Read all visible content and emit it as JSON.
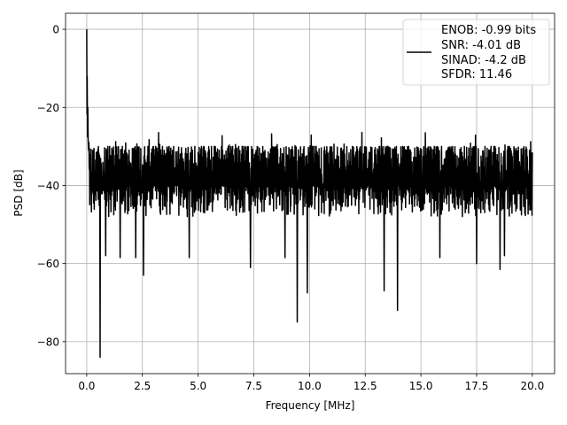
{
  "chart_data": {
    "type": "line",
    "title": "",
    "xlabel": "Frequency [MHz]",
    "ylabel": "PSD [dB]",
    "xlim": [
      -0.95,
      21.0
    ],
    "ylim": [
      -88.2,
      4.1
    ],
    "grid": true,
    "xticks": [
      0,
      2.5,
      5,
      7.5,
      10,
      12.5,
      15,
      17.5,
      20
    ],
    "xtick_labels": [
      "0.0",
      "2.5",
      "5.0",
      "7.5",
      "10.0",
      "12.5",
      "15.0",
      "17.5",
      "20.0"
    ],
    "yticks": [
      0,
      -20,
      -40,
      -60,
      -80
    ],
    "ytick_labels": [
      "0",
      "−20",
      "−40",
      "−60",
      "−80"
    ],
    "legend": {
      "placement": "top-right",
      "entries": [
        "ENOB: -0.99 bits",
        "SNR: -4.01 dB",
        "SINAD: -4.2 dB",
        "SFDR: 11.46"
      ]
    },
    "series": [
      {
        "name": "PSD",
        "color": "#000000",
        "x_range": [
          0,
          20
        ],
        "noise_band": {
          "typical_high": -28,
          "typical_low": -46,
          "mean": -37,
          "n_points": 1600
        },
        "key_points": [
          {
            "x": 0.0,
            "y": 0.0
          },
          {
            "x": 0.02,
            "y": -12
          },
          {
            "x": 0.05,
            "y": -20
          },
          {
            "x": 0.1,
            "y": -29
          },
          {
            "x": 0.6,
            "y": -84
          },
          {
            "x": 0.85,
            "y": -58
          },
          {
            "x": 1.5,
            "y": -58.5
          },
          {
            "x": 2.2,
            "y": -58.5
          },
          {
            "x": 2.55,
            "y": -63
          },
          {
            "x": 4.6,
            "y": -58.5
          },
          {
            "x": 7.35,
            "y": -61
          },
          {
            "x": 8.9,
            "y": -58.5
          },
          {
            "x": 9.45,
            "y": -75
          },
          {
            "x": 9.9,
            "y": -67.5
          },
          {
            "x": 13.35,
            "y": -67
          },
          {
            "x": 13.95,
            "y": -72
          },
          {
            "x": 15.85,
            "y": -58.5
          },
          {
            "x": 17.5,
            "y": -60
          },
          {
            "x": 18.55,
            "y": -61.5
          },
          {
            "x": 18.75,
            "y": -58
          }
        ]
      }
    ]
  }
}
